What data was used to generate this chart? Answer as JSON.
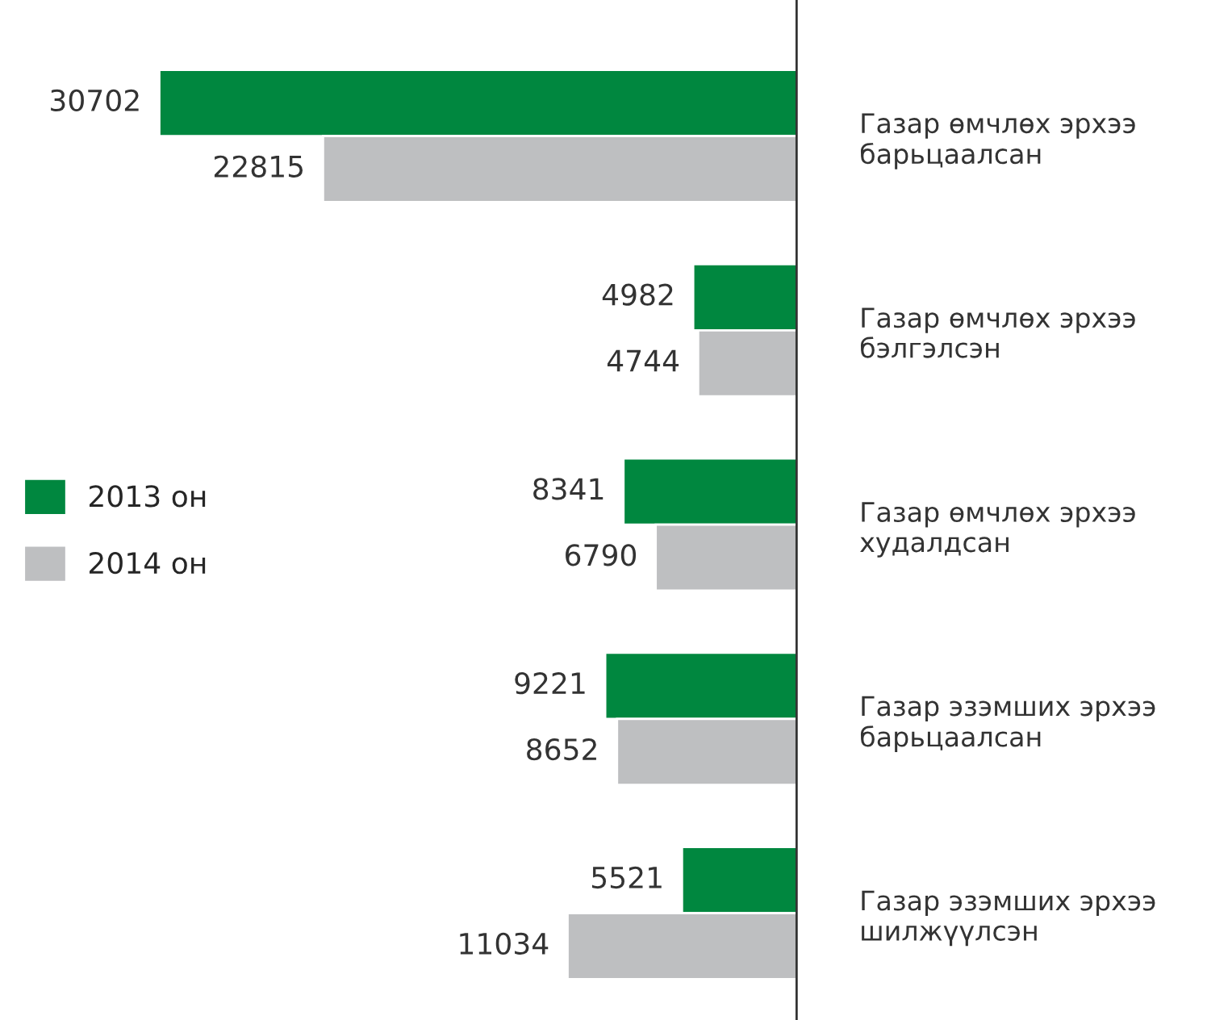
{
  "chart_data": {
    "type": "bar",
    "orientation": "horizontal",
    "categories": [
      "Газар өмчлөх эрхээ барьцаалсан",
      "Газар өмчлөх эрхээ бэлгэлсэн",
      "Газар өмчлөх эрхээ худалдсан",
      "Газар эзэмших эрхээ барьцаалсан",
      "Газар эзэмших эрхээ шилжүүлсэн"
    ],
    "series": [
      {
        "name": "2013 он",
        "color": "#00873f",
        "values": [
          30702,
          4982,
          8341,
          9221,
          5521
        ]
      },
      {
        "name": "2014 он",
        "color": "#bebfc1",
        "values": [
          22815,
          4744,
          6790,
          8652,
          11034
        ]
      }
    ],
    "data_labels": true,
    "legend": "left",
    "grid": false
  }
}
